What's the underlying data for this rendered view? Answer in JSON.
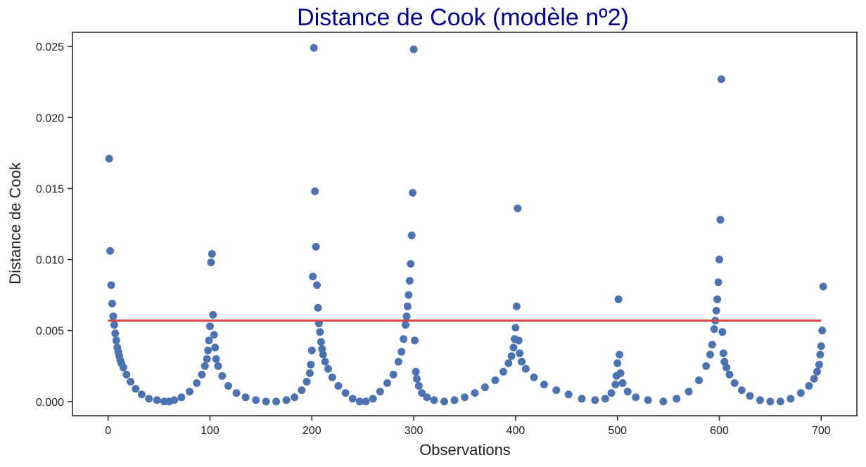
{
  "chart_data": {
    "type": "scatter",
    "title": "Distance de Cook (modèle nº2)",
    "xlabel": "Observations",
    "ylabel": "Distance de Cook",
    "xlim": [
      -35,
      735
    ],
    "ylim": [
      -0.001,
      0.026
    ],
    "xticks": [
      0,
      100,
      200,
      300,
      400,
      500,
      600,
      700
    ],
    "xtick_labels": [
      "0",
      "100",
      "200",
      "300",
      "400",
      "500",
      "600",
      "700"
    ],
    "yticks": [
      0,
      0.005,
      0.01,
      0.015,
      0.02,
      0.025
    ],
    "ytick_labels": [
      "0.000",
      "0.005",
      "0.010",
      "0.015",
      "0.020",
      "0.025"
    ],
    "grid": false,
    "threshold": {
      "value": 0.0057,
      "x_range": [
        0,
        700
      ],
      "color": "#d9464a"
    },
    "point_color": "#4c72b0",
    "title_color": "#00008b",
    "series": [
      {
        "points": [
          [
            1,
            0.0171
          ],
          [
            2,
            0.0106
          ],
          [
            3,
            0.0082
          ],
          [
            4,
            0.0069
          ],
          [
            5,
            0.006
          ],
          [
            6,
            0.0054
          ],
          [
            7,
            0.0048
          ],
          [
            8,
            0.0043
          ],
          [
            9,
            0.0038
          ],
          [
            10,
            0.0035
          ],
          [
            11,
            0.0032
          ],
          [
            12,
            0.0029
          ],
          [
            13,
            0.0027
          ],
          [
            15,
            0.0024
          ],
          [
            18,
            0.0019
          ],
          [
            22,
            0.0014
          ],
          [
            27,
            0.0009
          ],
          [
            33,
            0.0005
          ],
          [
            40,
            0.0002
          ],
          [
            48,
            0.0001
          ],
          [
            55,
            0.0
          ],
          [
            60,
            0.0
          ],
          [
            65,
            0.0001
          ],
          [
            72,
            0.0003
          ],
          [
            80,
            0.0007
          ],
          [
            87,
            0.0013
          ],
          [
            92,
            0.0019
          ],
          [
            95,
            0.0025
          ],
          [
            97,
            0.003
          ],
          [
            98,
            0.0036
          ],
          [
            99,
            0.0043
          ],
          [
            100,
            0.0053
          ],
          [
            101,
            0.0098
          ],
          [
            102,
            0.0104
          ],
          [
            103,
            0.0061
          ],
          [
            104,
            0.0047
          ],
          [
            105,
            0.0038
          ],
          [
            106,
            0.003
          ],
          [
            108,
            0.0025
          ],
          [
            112,
            0.0018
          ],
          [
            118,
            0.0011
          ],
          [
            126,
            0.0006
          ],
          [
            135,
            0.0003
          ],
          [
            145,
            0.0001
          ],
          [
            155,
            0.0
          ],
          [
            165,
            0.0
          ],
          [
            175,
            0.0001
          ],
          [
            183,
            0.0003
          ],
          [
            190,
            0.0008
          ],
          [
            195,
            0.0014
          ],
          [
            198,
            0.002
          ],
          [
            199,
            0.0026
          ],
          [
            200,
            0.0036
          ],
          [
            201,
            0.0088
          ],
          [
            202,
            0.0249
          ],
          [
            203,
            0.0148
          ],
          [
            204,
            0.0109
          ],
          [
            205,
            0.0082
          ],
          [
            206,
            0.0066
          ],
          [
            207,
            0.0055
          ],
          [
            208,
            0.0049
          ],
          [
            209,
            0.0042
          ],
          [
            210,
            0.0037
          ],
          [
            211,
            0.0033
          ],
          [
            213,
            0.0028
          ],
          [
            216,
            0.0023
          ],
          [
            220,
            0.0017
          ],
          [
            226,
            0.0011
          ],
          [
            233,
            0.0006
          ],
          [
            240,
            0.0002
          ],
          [
            247,
            0.0
          ],
          [
            253,
            0.0
          ],
          [
            260,
            0.0002
          ],
          [
            267,
            0.0007
          ],
          [
            274,
            0.0013
          ],
          [
            280,
            0.0019
          ],
          [
            285,
            0.0028
          ],
          [
            288,
            0.0035
          ],
          [
            290,
            0.0044
          ],
          [
            292,
            0.0054
          ],
          [
            293,
            0.006
          ],
          [
            294,
            0.0067
          ],
          [
            295,
            0.0075
          ],
          [
            296,
            0.0085
          ],
          [
            297,
            0.0097
          ],
          [
            298,
            0.0117
          ],
          [
            299,
            0.0147
          ],
          [
            300,
            0.0248
          ],
          [
            301,
            0.0043
          ],
          [
            302,
            0.0021
          ],
          [
            303,
            0.0016
          ],
          [
            305,
            0.0011
          ],
          [
            308,
            0.0006
          ],
          [
            313,
            0.0003
          ],
          [
            320,
            0.0001
          ],
          [
            330,
            0.0
          ],
          [
            340,
            0.0001
          ],
          [
            350,
            0.0003
          ],
          [
            360,
            0.0006
          ],
          [
            370,
            0.001
          ],
          [
            380,
            0.0015
          ],
          [
            388,
            0.0021
          ],
          [
            393,
            0.0027
          ],
          [
            396,
            0.0032
          ],
          [
            398,
            0.0038
          ],
          [
            399,
            0.0044
          ],
          [
            400,
            0.0052
          ],
          [
            401,
            0.0067
          ],
          [
            402,
            0.0136
          ],
          [
            403,
            0.0043
          ],
          [
            404,
            0.0034
          ],
          [
            406,
            0.0028
          ],
          [
            410,
            0.0023
          ],
          [
            418,
            0.0017
          ],
          [
            428,
            0.0012
          ],
          [
            440,
            0.0008
          ],
          [
            452,
            0.0005
          ],
          [
            465,
            0.0002
          ],
          [
            478,
            0.0001
          ],
          [
            488,
            0.0002
          ],
          [
            494,
            0.0006
          ],
          [
            498,
            0.0012
          ],
          [
            499,
            0.0018
          ],
          [
            500,
            0.0027
          ],
          [
            501,
            0.0072
          ],
          [
            502,
            0.0033
          ],
          [
            503,
            0.002
          ],
          [
            505,
            0.0013
          ],
          [
            510,
            0.0007
          ],
          [
            518,
            0.0003
          ],
          [
            530,
            0.0001
          ],
          [
            545,
            0.0
          ],
          [
            558,
            0.0002
          ],
          [
            570,
            0.0007
          ],
          [
            580,
            0.0015
          ],
          [
            587,
            0.0025
          ],
          [
            591,
            0.0033
          ],
          [
            593,
            0.004
          ],
          [
            595,
            0.0051
          ],
          [
            596,
            0.0057
          ],
          [
            597,
            0.0064
          ],
          [
            598,
            0.0072
          ],
          [
            599,
            0.0084
          ],
          [
            600,
            0.01
          ],
          [
            601,
            0.0128
          ],
          [
            602,
            0.0227
          ],
          [
            603,
            0.0049
          ],
          [
            604,
            0.0034
          ],
          [
            605,
            0.0028
          ],
          [
            607,
            0.0024
          ],
          [
            610,
            0.0019
          ],
          [
            615,
            0.0013
          ],
          [
            622,
            0.0008
          ],
          [
            630,
            0.0004
          ],
          [
            640,
            0.0001
          ],
          [
            650,
            0.0
          ],
          [
            660,
            0.0
          ],
          [
            670,
            0.0002
          ],
          [
            680,
            0.0006
          ],
          [
            688,
            0.0011
          ],
          [
            693,
            0.0016
          ],
          [
            696,
            0.0021
          ],
          [
            698,
            0.0026
          ],
          [
            699,
            0.0033
          ],
          [
            700,
            0.0039
          ],
          [
            701,
            0.005
          ],
          [
            702,
            0.0081
          ]
        ]
      }
    ]
  }
}
